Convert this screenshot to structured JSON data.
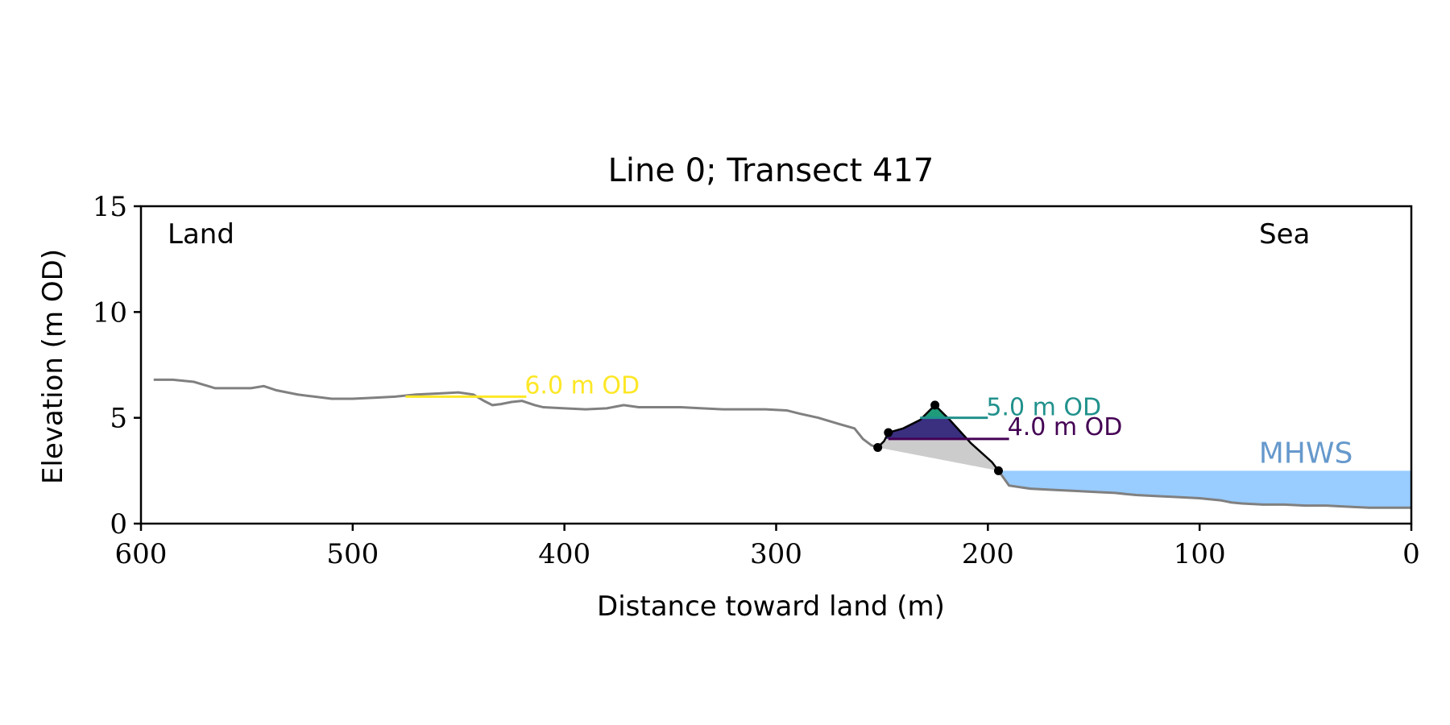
{
  "chart_data": {
    "type": "line",
    "title": "Line 0; Transect 417",
    "xlabel": "Distance toward land (m)",
    "ylabel": "Elevation (m OD)",
    "xlim": [
      600,
      0
    ],
    "ylim": [
      0,
      15
    ],
    "x_ticks": [
      600,
      500,
      400,
      300,
      200,
      100,
      0
    ],
    "y_ticks": [
      0,
      5,
      10,
      15
    ],
    "grid": false,
    "corner_labels": {
      "left": "Land",
      "right": "Sea"
    },
    "profile": {
      "color": "#808080",
      "x": [
        594,
        585,
        575,
        565,
        556,
        548,
        542,
        536,
        531,
        526,
        518,
        510,
        500,
        490,
        480,
        470,
        460,
        450,
        443,
        438,
        434,
        430,
        425,
        420,
        414,
        410,
        400,
        390,
        380,
        372,
        365,
        355,
        345,
        335,
        325,
        315,
        305,
        295,
        289,
        280,
        270,
        263,
        259,
        255,
        252
      ],
      "y": [
        6.8,
        6.8,
        6.7,
        6.4,
        6.4,
        6.4,
        6.5,
        6.3,
        6.2,
        6.1,
        6.0,
        5.9,
        5.9,
        5.95,
        6.0,
        6.1,
        6.15,
        6.2,
        6.1,
        5.8,
        5.6,
        5.65,
        5.75,
        5.8,
        5.6,
        5.5,
        5.45,
        5.4,
        5.45,
        5.6,
        5.5,
        5.5,
        5.5,
        5.45,
        5.4,
        5.4,
        5.4,
        5.35,
        5.2,
        5.0,
        4.7,
        4.5,
        4.0,
        3.7,
        3.6
      ]
    },
    "seaward_profile": {
      "color": "#808080",
      "x": [
        195,
        190,
        180,
        170,
        160,
        150,
        140,
        130,
        120,
        110,
        100,
        90,
        85,
        80,
        70,
        60,
        50,
        40,
        30,
        20,
        10,
        0
      ],
      "y": [
        2.5,
        1.8,
        1.65,
        1.6,
        1.55,
        1.5,
        1.45,
        1.35,
        1.3,
        1.25,
        1.2,
        1.1,
        1.0,
        0.95,
        0.9,
        0.9,
        0.85,
        0.85,
        0.8,
        0.75,
        0.75,
        0.75
      ]
    },
    "dune": {
      "line_color": "#000000",
      "x": [
        252,
        249,
        247,
        240,
        232,
        228,
        225,
        218,
        208,
        198,
        195
      ],
      "y": [
        3.6,
        3.9,
        4.3,
        4.5,
        4.9,
        5.3,
        5.6,
        4.9,
        3.8,
        2.9,
        2.5
      ],
      "marker_points": {
        "x": [
          252,
          247,
          225,
          195
        ],
        "y": [
          3.6,
          4.3,
          5.6,
          2.5
        ]
      },
      "base_fill_color": "#cccccc"
    },
    "levels": [
      {
        "name": "6.0 m OD",
        "value": 6.0,
        "color": "#fde725",
        "x_from": 475,
        "x_to": 418
      },
      {
        "name": "5.0 m OD",
        "value": 5.0,
        "color": "#21918c",
        "x_from": 232,
        "x_to": 200
      },
      {
        "name": "4.0 m OD",
        "value": 4.0,
        "color": "#440154",
        "x_from": 247,
        "x_to": 190
      }
    ],
    "fills": {
      "above_5_color": "#1f9b7a",
      "between_4_5_color": "#3b2f80"
    },
    "mhws": {
      "label": "MHWS",
      "value": 2.5,
      "fill_color": "#99ccff",
      "label_color": "#6699cc",
      "x_from": 195,
      "x_to": 0
    }
  }
}
